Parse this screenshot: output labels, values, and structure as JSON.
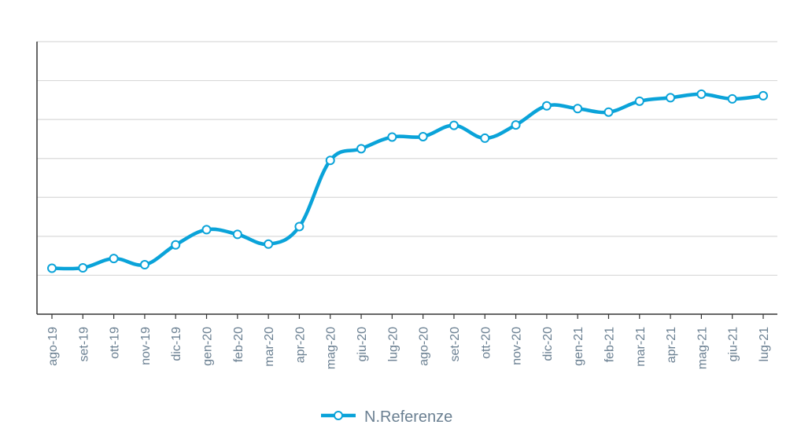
{
  "chart_data": {
    "type": "line",
    "categories": [
      "ago-19",
      "set-19",
      "ott-19",
      "nov-19",
      "dic-19",
      "gen-20",
      "feb-20",
      "mar-20",
      "apr-20",
      "mag-20",
      "giu-20",
      "lug-20",
      "ago-20",
      "set-20",
      "ott-20",
      "nov-20",
      "dic-20",
      "gen-21",
      "feb-21",
      "mar-21",
      "apr-21",
      "mag-21",
      "giu-21",
      "lug-21"
    ],
    "series": [
      {
        "name": "N.Referenze",
        "color": "#0aa3d9",
        "values": [
          1.18,
          1.19,
          1.43,
          1.27,
          1.78,
          2.17,
          2.05,
          1.8,
          2.25,
          3.95,
          4.25,
          4.55,
          4.56,
          4.85,
          4.52,
          4.86,
          5.35,
          5.28,
          5.19,
          5.47,
          5.56,
          5.65,
          5.53,
          5.61
        ]
      }
    ],
    "ylim": [
      0,
      7
    ],
    "grid": true,
    "ytick_labels_shown": false,
    "legend_position": "bottom-center",
    "marker": "hollow-circle"
  }
}
